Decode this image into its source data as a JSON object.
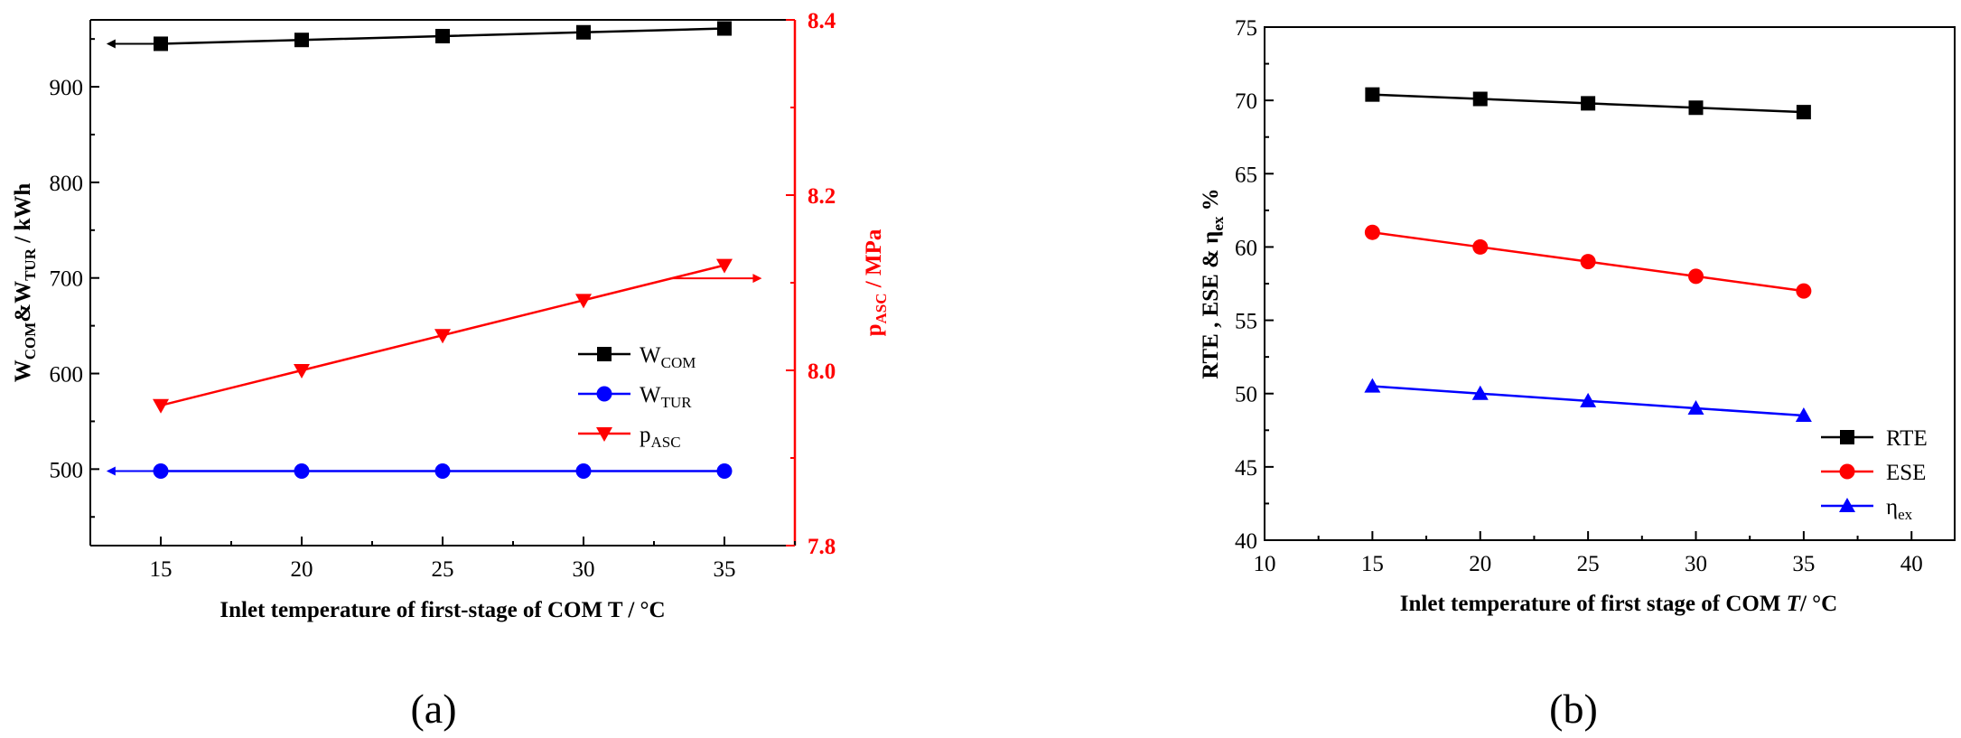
{
  "chart_data": [
    {
      "type": "line",
      "panel_label": "(a)",
      "xlabel": "Inlet temperature of first-stage of COM  T / °C",
      "ylabel": "W_COM&W_TUR  / kWh",
      "ylabel_parts": [
        "W",
        "COM",
        "&W",
        "TUR",
        "  / kWh"
      ],
      "y2label_parts": [
        "p",
        "ASC",
        " / MPa"
      ],
      "xlim": [
        12.5,
        37.5
      ],
      "xticks": [
        15,
        20,
        25,
        30,
        35
      ],
      "ylim": [
        420,
        970
      ],
      "yticks": [
        500,
        600,
        700,
        800,
        900
      ],
      "y2lim": [
        7.8,
        8.4
      ],
      "y2ticks": [
        7.8,
        8.0,
        8.2,
        8.4
      ],
      "y2_tick_labels": [
        "7.8",
        "8.0",
        "8.2",
        "8.4"
      ],
      "x": [
        15,
        20,
        25,
        30,
        35
      ],
      "series": [
        {
          "name": "W",
          "sub": "COM",
          "axis": "left",
          "color": "#000000",
          "marker": "square",
          "values": [
            945,
            949,
            953,
            957,
            961
          ]
        },
        {
          "name": "W",
          "sub": "TUR",
          "axis": "left",
          "color": "#0000ff",
          "marker": "circle",
          "values": [
            498,
            498,
            498,
            498,
            498
          ]
        },
        {
          "name": "p",
          "sub": "ASC",
          "axis": "right",
          "color": "#ff0000",
          "marker": "triangle-down",
          "values": [
            7.96,
            8.0,
            8.04,
            8.08,
            8.12
          ]
        }
      ],
      "legend_position": "center-right"
    },
    {
      "type": "line",
      "panel_label": "(b)",
      "xlabel_parts": [
        "Inlet temperature of first stage of  COM ",
        "T",
        "/ °C"
      ],
      "ylabel_parts": [
        "RTE , ESE & η",
        "ex",
        " %"
      ],
      "xlim": [
        10,
        42
      ],
      "xticks": [
        10,
        15,
        20,
        25,
        30,
        35,
        40
      ],
      "ylim": [
        40,
        75
      ],
      "yticks": [
        40,
        45,
        50,
        55,
        60,
        65,
        70,
        75
      ],
      "x": [
        15,
        20,
        25,
        30,
        35
      ],
      "series": [
        {
          "name": "RTE",
          "sub": "",
          "color": "#000000",
          "marker": "square",
          "values": [
            70.4,
            70.1,
            69.8,
            69.5,
            69.2
          ]
        },
        {
          "name": "ESE",
          "sub": "",
          "color": "#ff0000",
          "marker": "circle",
          "values": [
            61.0,
            60.0,
            59.0,
            58.0,
            57.0
          ]
        },
        {
          "name": "η",
          "sub": "ex",
          "color": "#0000ff",
          "marker": "triangle-up",
          "values": [
            50.5,
            50.0,
            49.5,
            49.0,
            48.5
          ]
        }
      ],
      "legend_position": "bottom-right"
    }
  ]
}
